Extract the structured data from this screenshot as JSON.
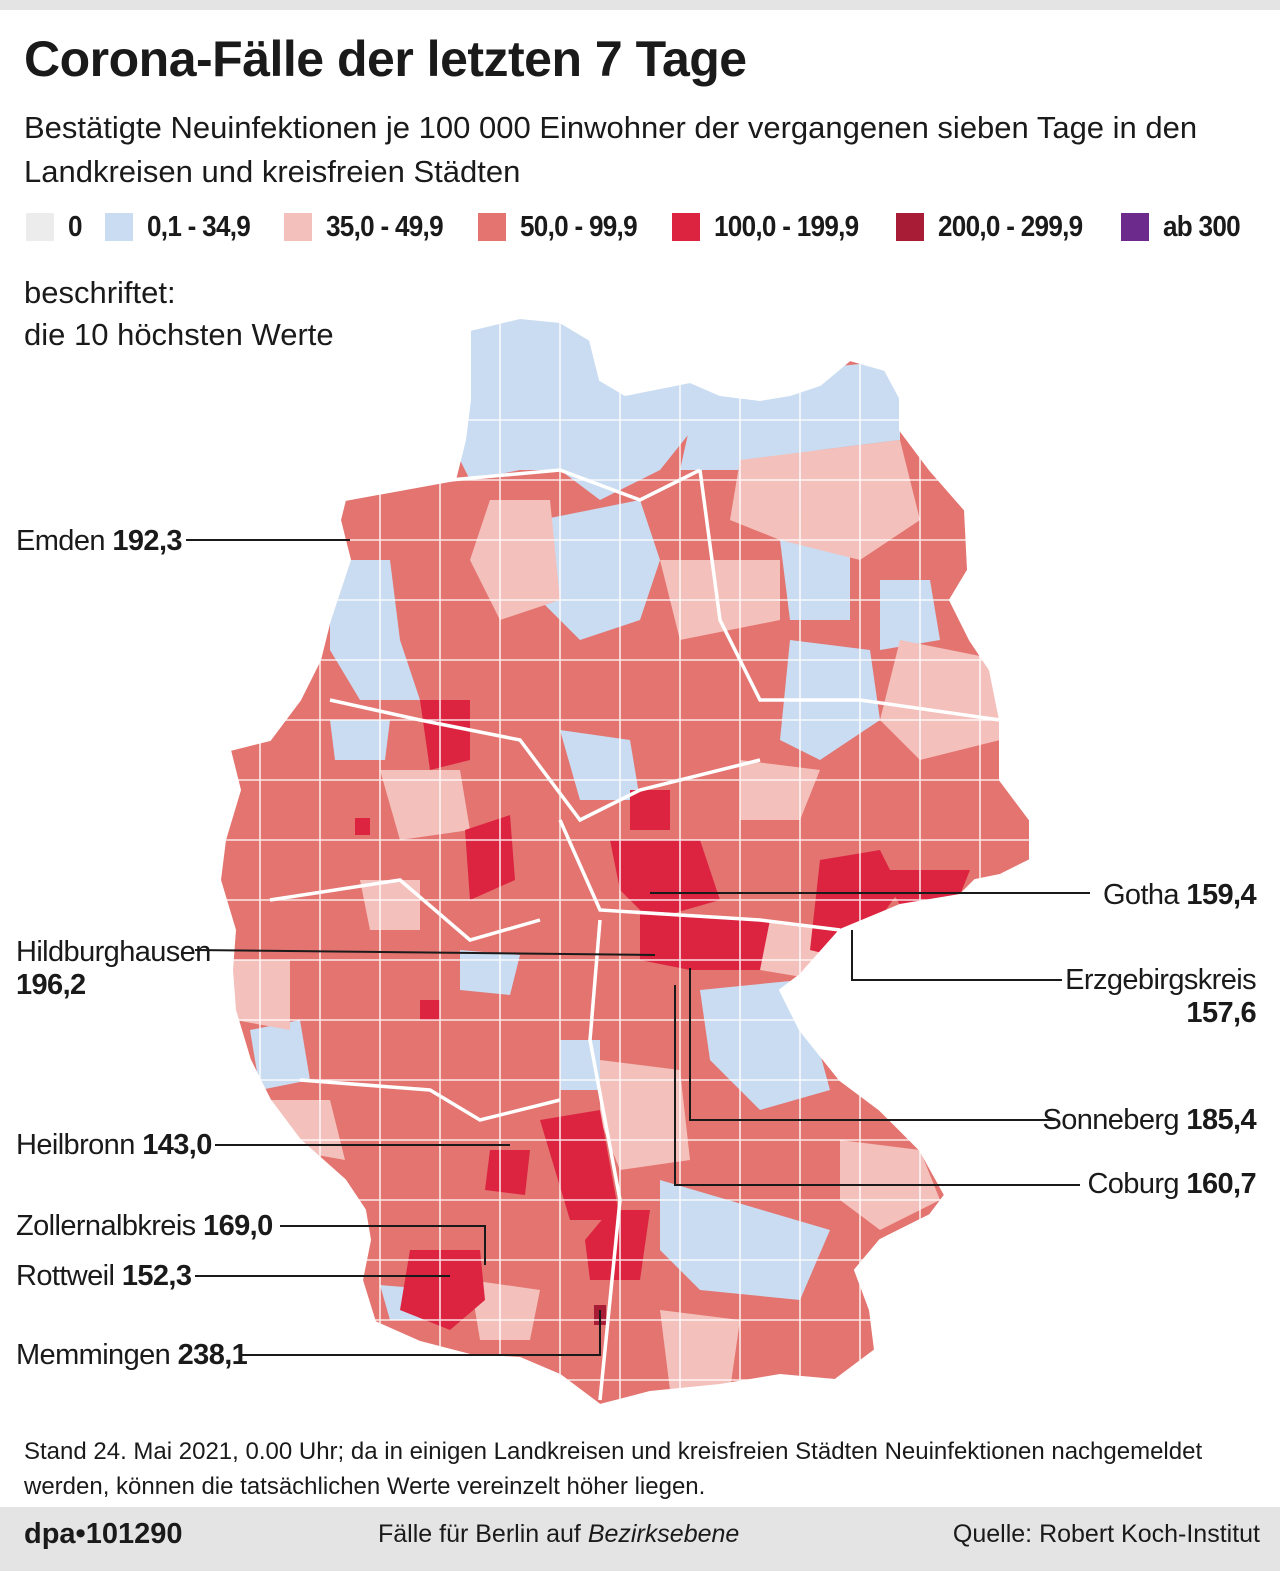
{
  "title": "Corona-Fälle der letzten 7 Tage",
  "subtitle": "Bestätigte Neuinfektionen je 100 000 Einwohner der vergangenen sieben Tage in den Landkreisen und kreisfreien Städten",
  "legend": [
    {
      "label": "0",
      "color": "#ececec"
    },
    {
      "label": "0,1 - 34,9",
      "color": "#c9dcf1"
    },
    {
      "label": "35,0 - 49,9",
      "color": "#f4c0bb"
    },
    {
      "label": "50,0 - 99,9",
      "color": "#e3746f"
    },
    {
      "label": "100,0 - 199,9",
      "color": "#dc2440"
    },
    {
      "label": "200,0 - 299,9",
      "color": "#a81c36"
    },
    {
      "label": "ab 300",
      "color": "#6b2a8c"
    }
  ],
  "note": [
    "beschriftet:",
    "die 10 höchsten Werte"
  ],
  "labels": [
    {
      "name": "Emden",
      "value": "192,3"
    },
    {
      "name": "Hildburghausen",
      "value": "196,2"
    },
    {
      "name": "Heilbronn",
      "value": "143,0"
    },
    {
      "name": "Zollernalbkreis",
      "value": "169,0"
    },
    {
      "name": "Rottweil",
      "value": "152,3"
    },
    {
      "name": "Memmingen",
      "value": "238,1"
    },
    {
      "name": "Gotha",
      "value": "159,4"
    },
    {
      "name": "Erzgebirgskreis",
      "value": "157,6"
    },
    {
      "name": "Sonneberg",
      "value": "185,4"
    },
    {
      "name": "Coburg",
      "value": "160,7"
    }
  ],
  "footnote": "Stand 24. Mai 2021, 0.00 Uhr; da in einigen Landkreisen und kreisfreien Städten Neuinfektionen nachgemeldet werden, können die tatsächlichen Werte vereinzelt höher liegen.",
  "footer": {
    "credit": "dpa•101290",
    "berlin_prefix": "Fälle für Berlin auf ",
    "berlin_em": "Bezirksebene",
    "source": "Quelle: Robert Koch-Institut"
  }
}
